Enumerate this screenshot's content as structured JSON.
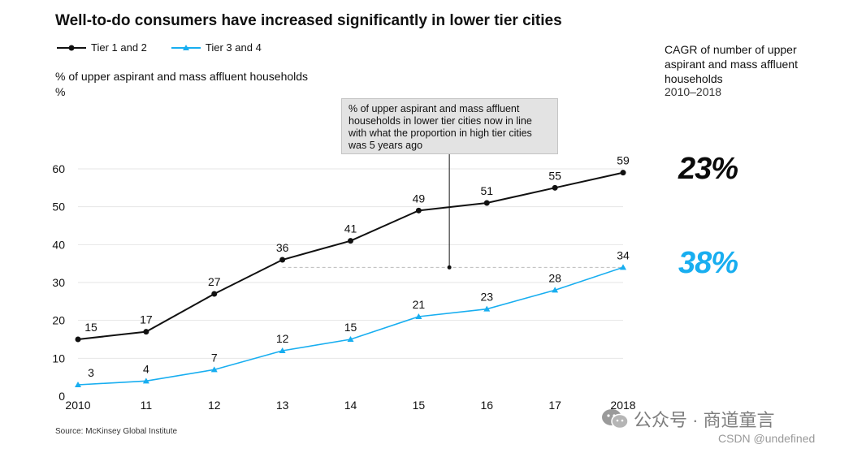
{
  "title": "Well-to-do consumers have increased significantly in lower tier cities",
  "legend": [
    {
      "name": "Tier 1 and 2",
      "color": "#111111",
      "marker": "circle"
    },
    {
      "name": "Tier 3 and 4",
      "color": "#18aef0",
      "marker": "triangle"
    }
  ],
  "y_axis_title": "% of upper aspirant and mass affluent households",
  "y_axis_unit": "%",
  "cagr": {
    "label": "CAGR of number of upper aspirant and mass affluent households",
    "period": "2010–2018",
    "tier12": "23%",
    "tier34": "38%"
  },
  "callout": "% of upper aspirant and mass affluent households in lower tier cities now in line with what the proportion in high tier cities was 5 years ago",
  "source": "Source: McKinsey Global Institute",
  "watermark": "公众号 · 商道童言",
  "csdn": "CSDN @undefined",
  "chart_data": {
    "type": "line",
    "x": [
      "2010",
      "11",
      "12",
      "13",
      "14",
      "15",
      "16",
      "17",
      "2018"
    ],
    "ylim": [
      0,
      60
    ],
    "yticks": [
      "0",
      "10",
      "20",
      "30",
      "40",
      "50",
      "60"
    ],
    "series": [
      {
        "name": "Tier 1 and 2",
        "color": "#111111",
        "values": [
          15,
          17,
          27,
          36,
          41,
          49,
          51,
          55,
          59
        ]
      },
      {
        "name": "Tier 3 and 4",
        "color": "#18aef0",
        "values": [
          3,
          4,
          7,
          12,
          15,
          21,
          23,
          28,
          34
        ]
      }
    ],
    "reference_line": {
      "value": 34,
      "from_index": 3,
      "to_index": 8
    },
    "callout_anchor": {
      "x_index": 5.45,
      "from_value": 49.9,
      "to_value": 34
    }
  }
}
